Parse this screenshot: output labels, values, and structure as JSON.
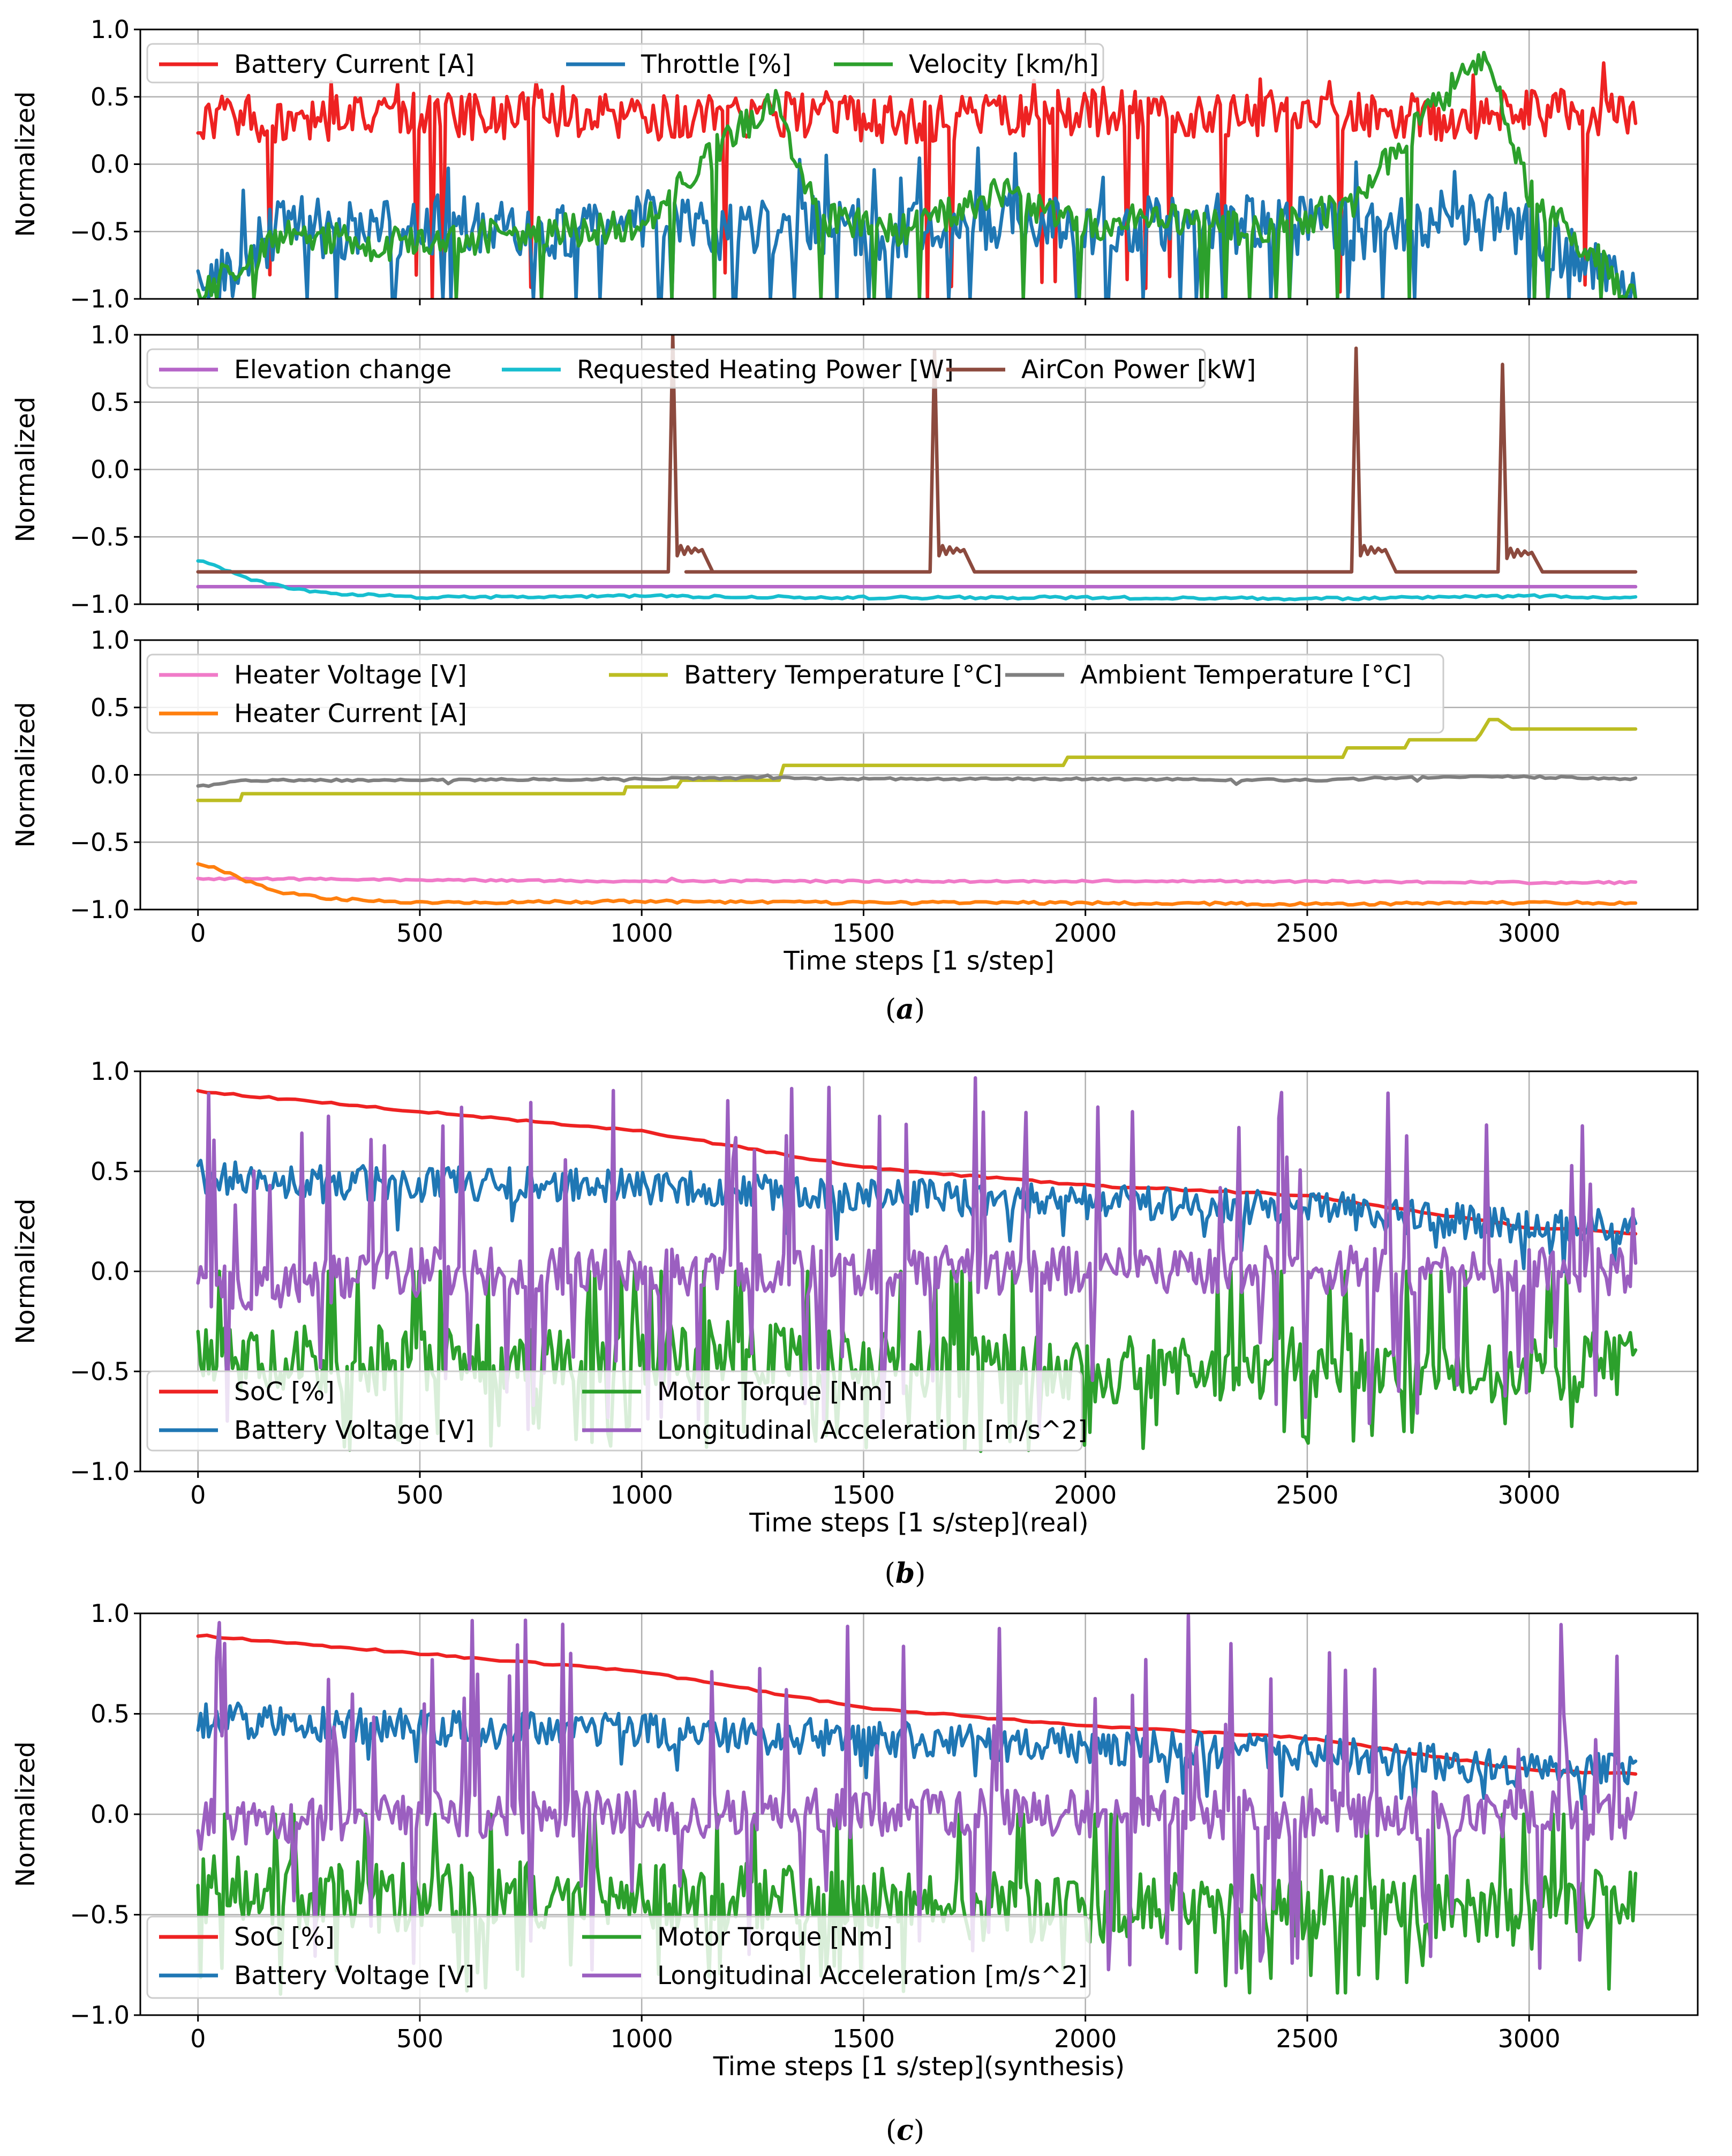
{
  "figure": {
    "captions": [
      "a",
      "b",
      "c"
    ]
  },
  "chart_data": [
    {
      "panel": "a-top",
      "type": "line",
      "ylabel": "Normalized",
      "ylim": [
        -1.0,
        1.0
      ],
      "xlim": [
        -130,
        3380
      ],
      "yticks": [
        "1.0",
        "0.5",
        "0.0",
        "−0.5",
        "−1.0"
      ],
      "grid": true,
      "legend": {
        "placement": "top-left",
        "columns": 3
      },
      "series": [
        {
          "name": "Battery Current [A]",
          "color": "#ee2222",
          "pattern": "current",
          "x": [
            0,
            200,
            400,
            600,
            800,
            1000,
            1200,
            1400,
            1600,
            1800,
            2000,
            2200,
            2400,
            2600,
            2800,
            3000,
            3240
          ],
          "values": [
            0.35,
            0.33,
            0.36,
            0.35,
            0.37,
            0.34,
            0.38,
            0.35,
            0.33,
            0.36,
            0.38,
            0.36,
            0.37,
            0.36,
            0.35,
            0.38,
            0.39
          ]
        },
        {
          "name": "Throttle [%]",
          "color": "#1f77b4",
          "pattern": "throttle",
          "x": [
            0,
            200,
            400,
            600,
            800,
            1000,
            1200,
            1400,
            1600,
            1800,
            2000,
            2200,
            2400,
            2600,
            2800,
            3000,
            3240
          ],
          "values": [
            -1.0,
            -0.45,
            -0.5,
            -0.42,
            -0.48,
            -0.4,
            -0.5,
            -0.45,
            -0.5,
            -0.4,
            -0.5,
            -0.42,
            -0.45,
            -0.5,
            -0.4,
            -0.45,
            -1.0
          ]
        },
        {
          "name": "Velocity [km/h]",
          "color": "#2ca02c",
          "pattern": "velocity",
          "x": [
            0,
            200,
            400,
            600,
            800,
            1000,
            1100,
            1300,
            1400,
            1600,
            1800,
            2000,
            2200,
            2400,
            2600,
            2900,
            3000,
            3240
          ],
          "values": [
            -1.0,
            -0.5,
            -0.6,
            -0.55,
            -0.5,
            -0.45,
            -0.1,
            0.5,
            -0.4,
            -0.5,
            -0.2,
            -0.45,
            -0.4,
            -0.5,
            -0.3,
            0.85,
            -0.2,
            -1.0
          ]
        }
      ]
    },
    {
      "panel": "a-middle",
      "type": "line",
      "ylabel": "Normalized",
      "ylim": [
        -1.0,
        1.0
      ],
      "xlim": [
        -130,
        3380
      ],
      "yticks": [
        "1.0",
        "0.5",
        "0.0",
        "−0.5",
        "−1.0"
      ],
      "grid": true,
      "legend": {
        "placement": "top-left",
        "columns": 3
      },
      "series": [
        {
          "name": "Elevation change",
          "color": "#b565c8",
          "pattern": "flat",
          "x": [
            0,
            3240
          ],
          "values": [
            -0.87,
            -0.87
          ]
        },
        {
          "name": "Requested Heating Power [W]",
          "color": "#17becf",
          "pattern": "heating",
          "x": [
            0,
            50,
            100,
            200,
            300,
            500,
            1000,
            1500,
            2000,
            2500,
            3000,
            3240
          ],
          "values": [
            -0.67,
            -0.73,
            -0.8,
            -0.88,
            -0.92,
            -0.95,
            -0.94,
            -0.95,
            -0.95,
            -0.96,
            -0.94,
            -0.95
          ]
        },
        {
          "name": "AirCon Power [kW]",
          "color": "#8c4a3e",
          "pattern": "aircon",
          "x": [
            0,
            1060,
            1070,
            1080,
            1100,
            1650,
            1660,
            1670,
            2600,
            2610,
            2620,
            2930,
            2940,
            2950,
            3240
          ],
          "values": [
            -0.76,
            -0.76,
            1.0,
            -0.6,
            -0.76,
            -0.76,
            0.88,
            -0.6,
            -0.76,
            0.9,
            -0.6,
            -0.76,
            0.78,
            -0.62,
            -0.76
          ]
        }
      ]
    },
    {
      "panel": "a-bottom",
      "type": "line",
      "xlabel": "Time steps [1 s/step]",
      "ylabel": "Normalized",
      "ylim": [
        -1.0,
        1.0
      ],
      "xlim": [
        -130,
        3380
      ],
      "yticks": [
        "1.0",
        "0.5",
        "0.0",
        "−0.5",
        "−1.0"
      ],
      "xticks": [
        0,
        500,
        1000,
        1500,
        2000,
        2500,
        3000
      ],
      "grid": true,
      "legend": {
        "placement": "top-left",
        "columns": 3
      },
      "series": [
        {
          "name": "Heater Voltage [V]",
          "color": "#f07ac8",
          "pattern": "noisy-flat",
          "x": [
            0,
            100,
            500,
            1000,
            1500,
            2000,
            2500,
            3000,
            3240
          ],
          "values": [
            -0.77,
            -0.77,
            -0.78,
            -0.79,
            -0.79,
            -0.79,
            -0.79,
            -0.8,
            -0.8
          ]
        },
        {
          "name": "Heater Current [A]",
          "color": "#ff7f0e",
          "pattern": "heating",
          "x": [
            0,
            50,
            100,
            200,
            300,
            500,
            1000,
            1500,
            2000,
            2500,
            3000,
            3240
          ],
          "values": [
            -0.66,
            -0.7,
            -0.78,
            -0.88,
            -0.92,
            -0.95,
            -0.94,
            -0.95,
            -0.95,
            -0.96,
            -0.95,
            -0.95
          ]
        },
        {
          "name": "Battery Temperature [°C]",
          "color": "#bcbd22",
          "pattern": "steps",
          "x": [
            0,
            95,
            100,
            960,
            965,
            1080,
            1090,
            1310,
            1320,
            1950,
            1960,
            2580,
            2590,
            2720,
            2730,
            2880,
            2890,
            2910,
            2930,
            2960,
            3240
          ],
          "values": [
            -0.19,
            -0.19,
            -0.14,
            -0.14,
            -0.09,
            -0.09,
            -0.04,
            -0.04,
            0.07,
            0.07,
            0.13,
            0.13,
            0.2,
            0.2,
            0.26,
            0.26,
            0.3,
            0.41,
            0.41,
            0.34,
            0.34
          ]
        },
        {
          "name": "Ambient Temperature [°C]",
          "color": "#7f7f7f",
          "pattern": "noisy-flat",
          "x": [
            0,
            100,
            500,
            1000,
            1300,
            1500,
            2000,
            2500,
            2900,
            3240
          ],
          "values": [
            -0.09,
            -0.04,
            -0.04,
            -0.03,
            -0.02,
            -0.03,
            -0.03,
            -0.04,
            -0.01,
            -0.03
          ]
        }
      ]
    },
    {
      "panel": "b",
      "type": "line",
      "xlabel": "Time steps [1 s/step](real)",
      "ylabel": "Normalized",
      "ylim": [
        -1.0,
        1.0
      ],
      "xlim": [
        -130,
        3380
      ],
      "yticks": [
        "1.0",
        "0.5",
        "0.0",
        "−0.5",
        "−1.0"
      ],
      "xticks": [
        0,
        500,
        1000,
        1500,
        2000,
        2500,
        3000
      ],
      "grid": true,
      "legend": {
        "placement": "lower-left",
        "columns": 2
      },
      "series": [
        {
          "name": "SoC [%]",
          "color": "#ee2222",
          "pattern": "smooth",
          "x": [
            0,
            500,
            1000,
            1500,
            2000,
            2500,
            3000,
            3240
          ],
          "values": [
            0.9,
            0.8,
            0.7,
            0.52,
            0.43,
            0.38,
            0.22,
            0.19
          ]
        },
        {
          "name": "Battery Voltage [V]",
          "color": "#1f77b4",
          "pattern": "voltage",
          "x": [
            0,
            500,
            1000,
            1500,
            2000,
            2500,
            3000,
            3240
          ],
          "values": [
            0.47,
            0.44,
            0.42,
            0.38,
            0.35,
            0.32,
            0.22,
            0.22
          ]
        },
        {
          "name": "Motor Torque [Nm]",
          "color": "#2ca02c",
          "pattern": "torque",
          "x": [
            0,
            500,
            1000,
            1500,
            2000,
            2500,
            3000,
            3240
          ],
          "values": [
            -0.43,
            -0.45,
            -0.4,
            -0.45,
            -0.5,
            -0.45,
            -0.5,
            -0.45
          ]
        },
        {
          "name": "Longitudinal Acceleration [m/s^2]",
          "color": "#9b5fc0",
          "pattern": "accel",
          "x": [
            0,
            500,
            1000,
            1500,
            2000,
            2500,
            3000,
            3240
          ],
          "values": [
            -0.1,
            0.0,
            0.0,
            0.0,
            0.0,
            0.0,
            0.0,
            0.0
          ]
        }
      ]
    },
    {
      "panel": "c",
      "type": "line",
      "xlabel": "Time steps [1 s/step](synthesis)",
      "ylabel": "Normalized",
      "ylim": [
        -1.0,
        1.0
      ],
      "xlim": [
        -130,
        3380
      ],
      "yticks": [
        "1.0",
        "0.5",
        "0.0",
        "−0.5",
        "−1.0"
      ],
      "xticks": [
        0,
        500,
        1000,
        1500,
        2000,
        2500,
        3000
      ],
      "grid": true,
      "legend": {
        "placement": "lower-left",
        "columns": 2
      },
      "series": [
        {
          "name": "SoC [%]",
          "color": "#ee2222",
          "pattern": "smooth",
          "x": [
            0,
            500,
            1000,
            1500,
            2000,
            2500,
            3000,
            3240
          ],
          "values": [
            0.89,
            0.8,
            0.71,
            0.53,
            0.44,
            0.38,
            0.22,
            0.2
          ]
        },
        {
          "name": "Battery Voltage [V]",
          "color": "#1f77b4",
          "pattern": "voltage",
          "x": [
            0,
            500,
            1000,
            1500,
            2000,
            2500,
            3000,
            3240
          ],
          "values": [
            0.47,
            0.43,
            0.41,
            0.38,
            0.34,
            0.31,
            0.22,
            0.22
          ]
        },
        {
          "name": "Motor Torque [Nm]",
          "color": "#2ca02c",
          "pattern": "torque",
          "x": [
            0,
            500,
            1000,
            1500,
            2000,
            2500,
            3000,
            3240
          ],
          "values": [
            -0.38,
            -0.42,
            -0.4,
            -0.43,
            -0.48,
            -0.45,
            -0.5,
            -0.4
          ]
        },
        {
          "name": "Longitudinal Acceleration [m/s^2]",
          "color": "#9b5fc0",
          "pattern": "accel",
          "x": [
            0,
            500,
            1000,
            1500,
            2000,
            2500,
            3000,
            3240
          ],
          "values": [
            -0.05,
            0.0,
            0.0,
            0.0,
            0.0,
            0.0,
            0.0,
            0.0
          ]
        }
      ]
    }
  ]
}
